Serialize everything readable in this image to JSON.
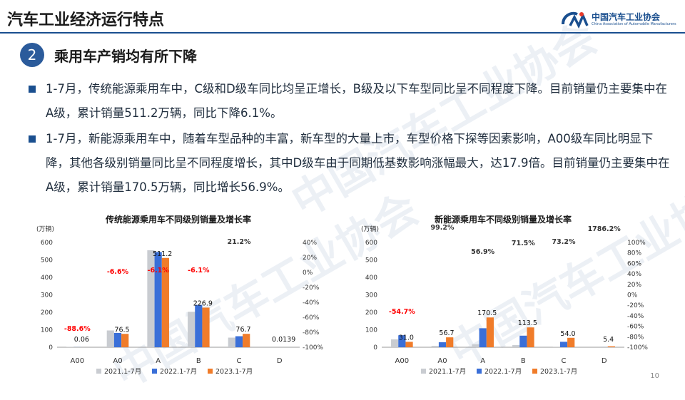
{
  "header": {
    "title": "汽车工业经济运行特点",
    "logo_cn": "中国汽车工业协会",
    "logo_en": "China Association of Automobile Manufacturers"
  },
  "section": {
    "number": "2",
    "title": "乘用车产销均有所下降"
  },
  "bullets": [
    "1-7月，传统能源乘用车中，C级和D级车同比均呈正增长，B级及以下车型同比呈不同程度下降。目前销量仍主要集中在A级，累计销量511.2万辆，同比下降6.1%。",
    "1-7月，新能源乘用车中，随着车型品种的丰富，新车型的大量上市，车型价格下探等因素影响，A00级车同比明显下降，其他各级别销量同比呈不同程度增长，其中D级车由于同期低基数影响涨幅最大，达17.9倍。目前销量仍主要集中在A级，累计销量170.5万辆，同比增长56.9%。"
  ],
  "watermark": "中国汽车工业协会",
  "page_number": "10",
  "colors": {
    "s2021": "#c9ccd1",
    "s2022": "#3a6fd8",
    "s2023": "#f07c2a",
    "negative": "#ff0000",
    "positive": "#333333"
  },
  "chart_data": [
    {
      "type": "bar",
      "title": "传统能源乘用车不同级别销量及增长率",
      "unit": "(万辆)",
      "categories": [
        "A00",
        "A0",
        "A",
        "B",
        "C",
        "D"
      ],
      "series": [
        {
          "name": "2021.1-7月",
          "values": [
            1.6,
            96,
            555,
            203,
            55,
            0.03
          ]
        },
        {
          "name": "2022.1-7月",
          "values": [
            0.5,
            82,
            545,
            242,
            63,
            0.012
          ]
        },
        {
          "name": "2023.1-7月",
          "values": [
            0.06,
            76.5,
            511.2,
            226.9,
            76.7,
            0.0139
          ]
        }
      ],
      "value_labels": [
        "0.06",
        "76.5",
        "511.2",
        "226.9",
        "76.7",
        "0.0139"
      ],
      "growth_labels": [
        "-88.6%",
        "-6.6%",
        "-6.1%",
        "-6.1%",
        "21.2%",
        ""
      ],
      "growth_values": [
        -88.6,
        -6.6,
        -6.1,
        -6.1,
        21.2,
        null
      ],
      "ylim": [
        0,
        600
      ],
      "yticks": [
        "0",
        "100",
        "200",
        "300",
        "400",
        "500",
        "600"
      ],
      "y2ticks": [
        "-100%",
        "-80%",
        "-60%",
        "-40%",
        "-20%",
        "0%",
        "20%",
        "40%"
      ]
    },
    {
      "type": "bar",
      "title": "新能源乘用车不同级别销量及增长率",
      "unit": "(万辆)",
      "categories": [
        "A00",
        "A0",
        "A",
        "B",
        "C",
        "D"
      ],
      "series": [
        {
          "name": "2021.1-7月",
          "values": [
            45,
            8,
            17,
            12,
            1,
            0
          ]
        },
        {
          "name": "2022.1-7月",
          "values": [
            68.5,
            28.5,
            108.7,
            66.2,
            31.2,
            0.3
          ]
        },
        {
          "name": "2023.1-7月",
          "values": [
            31.0,
            56.7,
            170.5,
            113.5,
            54.0,
            5.4
          ]
        }
      ],
      "value_labels": [
        "31.0",
        "56.7",
        "170.5",
        "113.5",
        "54.0",
        "5.4"
      ],
      "growth_labels": [
        "-54.7%",
        "99.2%",
        "56.9%",
        "71.5%",
        "73.2%",
        "1786.2%"
      ],
      "growth_values": [
        -54.7,
        99.2,
        56.9,
        71.5,
        73.2,
        1786.2
      ],
      "ylim": [
        0,
        600
      ],
      "yticks": [
        "0",
        "100",
        "200",
        "300",
        "400",
        "500",
        "600"
      ],
      "y2ticks": [
        "-100%",
        "-80%",
        "-60%",
        "-40%",
        "-20%",
        "0%",
        "20%",
        "40%",
        "60%",
        "80%",
        "100%"
      ]
    }
  ]
}
